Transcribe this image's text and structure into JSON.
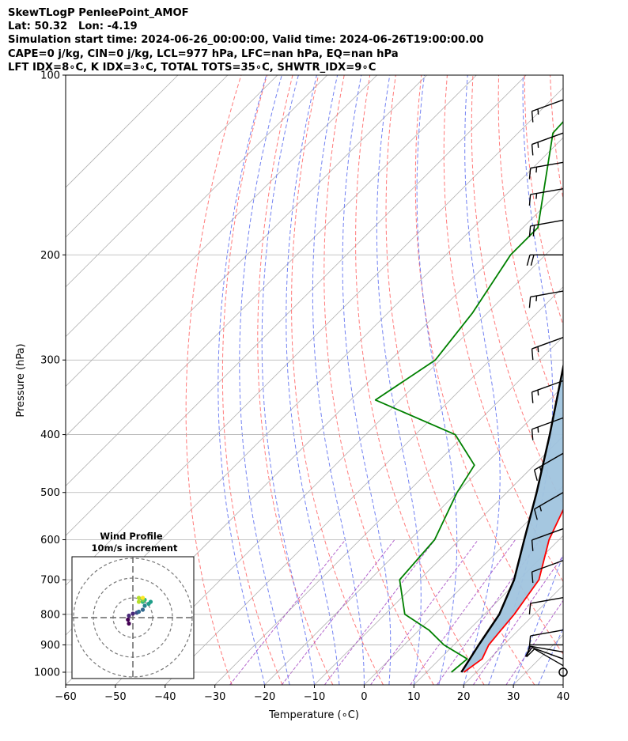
{
  "header": {
    "line1": "SkewTLogP PenleePoint_AMOF",
    "line2": "Lat: 50.32   Lon: -4.19",
    "line3": "Simulation start time: 2024-06-26_00:00:00, Valid time: 2024-06-26T19:00:00.00",
    "line4": "CAPE=0 j/kg, CIN=0 j/kg, LCL=977 hPa, LFC=nan hPa, EQ=nan hPa",
    "line5": "LFT IDX=8$^\\circ$C, K IDX=3$^\\circ$C, TOTAL TOTS=35$^\\circ$C, SHWTR_IDX=9$^\\circ$C",
    "line5_display": "LFT IDX=8∘C, K IDX=3∘C, TOTAL TOTS=35∘C, SHWTR_IDX=9∘C"
  },
  "colors": {
    "temperature": "#ff0000",
    "dewpoint": "#008000",
    "parcel": "#000000",
    "shade": "#a0c4de",
    "dry_adiabat": "#ff6b6b",
    "moist_adiabat": "#5b6cf0",
    "mixing_ratio": "#a040c0",
    "isotherm": "#b0b0b0"
  },
  "chart_data": [
    {
      "type": "line",
      "title": "",
      "xlabel": "Temperature (∘C)",
      "ylabel": "Pressure (hPa)",
      "xlim": [
        -60,
        40
      ],
      "ylim": [
        1050,
        100
      ],
      "y_scale": "log",
      "x_ticks": [
        "−60",
        "−50",
        "−40",
        "−30",
        "−20",
        "−10",
        "0",
        "10",
        "20",
        "30",
        "40"
      ],
      "y_ticks": [
        "100",
        "200",
        "300",
        "400",
        "500",
        "600",
        "700",
        "800",
        "900",
        "1000"
      ],
      "grid": true,
      "skewed": true,
      "series": [
        {
          "name": "temperature",
          "points": [
            [
              17.5,
              1000
            ],
            [
              18.5,
              950
            ],
            [
              17,
              900
            ],
            [
              16.5,
              850
            ],
            [
              16,
              800
            ],
            [
              14,
              700
            ],
            [
              8,
              600
            ],
            [
              3,
              500
            ],
            [
              -3,
              400
            ],
            [
              -9,
              350
            ],
            [
              -16,
              300
            ],
            [
              -24,
              250
            ],
            [
              -36,
              200
            ],
            [
              -46,
              180
            ],
            [
              -57,
              150
            ],
            [
              -61,
              125
            ],
            [
              -64,
              100
            ]
          ]
        },
        {
          "name": "dewpoint",
          "points": [
            [
              15,
              1000
            ],
            [
              15.5,
              950
            ],
            [
              8,
              900
            ],
            [
              2,
              850
            ],
            [
              -6,
              800
            ],
            [
              -14,
              700
            ],
            [
              -15,
              600
            ],
            [
              -20,
              500
            ],
            [
              -22,
              450
            ],
            [
              -32,
              400
            ],
            [
              -55,
              350
            ],
            [
              -51,
              300
            ],
            [
              -53,
              250
            ],
            [
              -57,
              200
            ],
            [
              -57,
              180
            ],
            [
              -65,
              150
            ],
            [
              -73,
              125
            ],
            [
              -74,
              100
            ]
          ]
        },
        {
          "name": "parcel",
          "points": [
            [
              17,
              1000
            ],
            [
              15,
              900
            ],
            [
              13,
              800
            ],
            [
              9,
              700
            ],
            [
              3,
              600
            ],
            [
              -4,
              500
            ],
            [
              -13,
              400
            ],
            [
              -25,
              300
            ],
            [
              -41,
              200
            ],
            [
              -54,
              150
            ],
            [
              -65,
              120
            ],
            [
              -73,
              100
            ]
          ]
        }
      ]
    },
    {
      "type": "scatter",
      "title": "Wind Profile",
      "subtitle": "10m/s increment",
      "note": "hodograph; rings at 10 m/s spacing",
      "points_ms": [
        [
          -2,
          -3
        ],
        [
          -2.5,
          -1
        ],
        [
          -2,
          1
        ],
        [
          0,
          2
        ],
        [
          2,
          2.5
        ],
        [
          3,
          3
        ],
        [
          5,
          4
        ],
        [
          6,
          6
        ],
        [
          8,
          7
        ],
        [
          9,
          8
        ],
        [
          6,
          9
        ],
        [
          5,
          8
        ],
        [
          5,
          9
        ],
        [
          3,
          8
        ],
        [
          3,
          10
        ],
        [
          5,
          10
        ]
      ]
    }
  ],
  "wind_barbs": {
    "note": "wind barbs along right edge (speed in kt, direction deg)",
    "levels": [
      {
        "p": 1000,
        "spd": 0,
        "dir": 0
      },
      {
        "p": 975,
        "spd": 10,
        "dir": 300
      },
      {
        "p": 950,
        "spd": 10,
        "dir": 290
      },
      {
        "p": 925,
        "spd": 10,
        "dir": 280
      },
      {
        "p": 900,
        "spd": 10,
        "dir": 270
      },
      {
        "p": 850,
        "spd": 10,
        "dir": 260
      },
      {
        "p": 750,
        "spd": 10,
        "dir": 260
      },
      {
        "p": 650,
        "spd": 10,
        "dir": 250
      },
      {
        "p": 575,
        "spd": 10,
        "dir": 250
      },
      {
        "p": 500,
        "spd": 15,
        "dir": 240
      },
      {
        "p": 430,
        "spd": 15,
        "dir": 240
      },
      {
        "p": 375,
        "spd": 15,
        "dir": 250
      },
      {
        "p": 325,
        "spd": 15,
        "dir": 250
      },
      {
        "p": 275,
        "spd": 15,
        "dir": 250
      },
      {
        "p": 230,
        "spd": 15,
        "dir": 260
      },
      {
        "p": 200,
        "spd": 20,
        "dir": 270
      },
      {
        "p": 175,
        "spd": 20,
        "dir": 260
      },
      {
        "p": 155,
        "spd": 15,
        "dir": 260
      },
      {
        "p": 140,
        "spd": 15,
        "dir": 260
      },
      {
        "p": 125,
        "spd": 15,
        "dir": 250
      },
      {
        "p": 110,
        "spd": 15,
        "dir": 250
      }
    ]
  }
}
